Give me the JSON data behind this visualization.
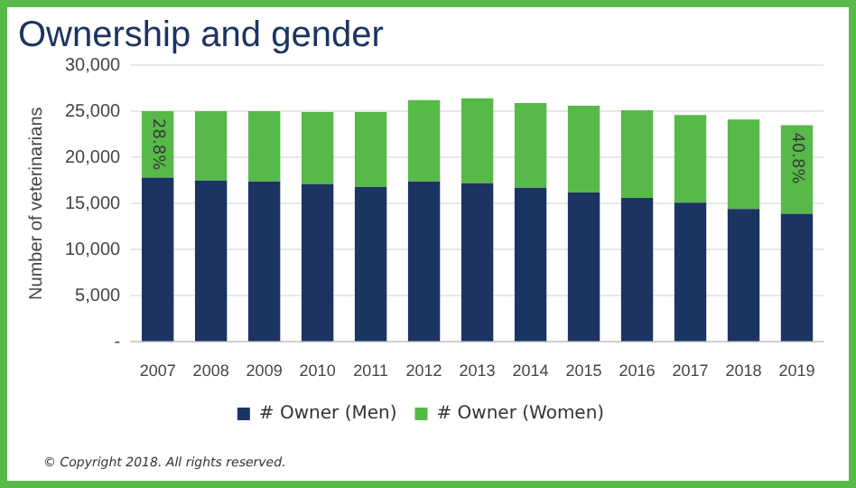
{
  "chart_data": {
    "type": "bar",
    "title": "Ownership and gender",
    "ylabel": "Number of veterinarians",
    "categories": [
      "2007",
      "2008",
      "2009",
      "2010",
      "2011",
      "2012",
      "2013",
      "2014",
      "2015",
      "2016",
      "2017",
      "2018",
      "2019"
    ],
    "stacked": true,
    "series": [
      {
        "name": "# Owner (Men)",
        "color": "#1b3461",
        "values": [
          17800,
          17500,
          17400,
          17100,
          16800,
          17400,
          17200,
          16700,
          16200,
          15600,
          15100,
          14400,
          13900
        ]
      },
      {
        "name": "# Owner (Women)",
        "color": "#56b948",
        "values": [
          7200,
          7500,
          7600,
          7800,
          8100,
          8800,
          9200,
          9200,
          9400,
          9500,
          9500,
          9700,
          9600
        ]
      }
    ],
    "ylim": [
      0,
      30000
    ],
    "yticks": [
      {
        "value": 0,
        "label": "-"
      },
      {
        "value": 5000,
        "label": "5,000"
      },
      {
        "value": 10000,
        "label": "10,000"
      },
      {
        "value": 15000,
        "label": "15,000"
      },
      {
        "value": 20000,
        "label": "20,000"
      },
      {
        "value": 25000,
        "label": "25,000"
      },
      {
        "value": 30000,
        "label": "30,000"
      }
    ],
    "grid": "y",
    "legend": "bottom",
    "annotations": [
      {
        "text": "28.8%",
        "x": "2007",
        "y": 25000
      },
      {
        "text": "40.8%",
        "x": "2019",
        "y": 23500
      },
      "© Copyright 2018. All rights reserved."
    ]
  }
}
